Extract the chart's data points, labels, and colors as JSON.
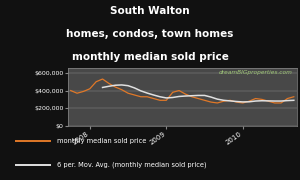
{
  "title_line1": "South Walton",
  "title_line2": "homes, condos, town homes",
  "title_line3": "monthly median sold price",
  "watermark": "dreamBIGproperties.com",
  "background_outer": "#111111",
  "background_plot": "#484848",
  "title_color": "#ffffff",
  "watermark_color": "#a0c878",
  "line1_color": "#e07828",
  "line2_color": "#e0e0e0",
  "legend_label1": "monthly median sold price",
  "legend_label2": "6 per. Mov. Avg. (monthly median sold price)",
  "ylim": [
    0,
    650000
  ],
  "yticks": [
    0,
    200000,
    400000,
    600000
  ],
  "ytick_labels": [
    "$0",
    "$200,000",
    "$400,000",
    "$600,000"
  ],
  "monthly_data": [
    400000,
    370000,
    390000,
    420000,
    500000,
    530000,
    480000,
    440000,
    410000,
    370000,
    350000,
    330000,
    330000,
    310000,
    290000,
    290000,
    380000,
    400000,
    360000,
    330000,
    310000,
    290000,
    270000,
    260000,
    280000,
    290000,
    270000,
    260000,
    280000,
    310000,
    300000,
    280000,
    260000,
    260000,
    310000,
    330000
  ],
  "x_tick_positions": [
    3,
    15,
    27
  ],
  "x_tick_labels": [
    "2008",
    "2009",
    "2010"
  ],
  "title_fontsize": 7.5,
  "tick_fontsize": 4.5,
  "legend_fontsize": 4.8,
  "watermark_fontsize": 4.2
}
